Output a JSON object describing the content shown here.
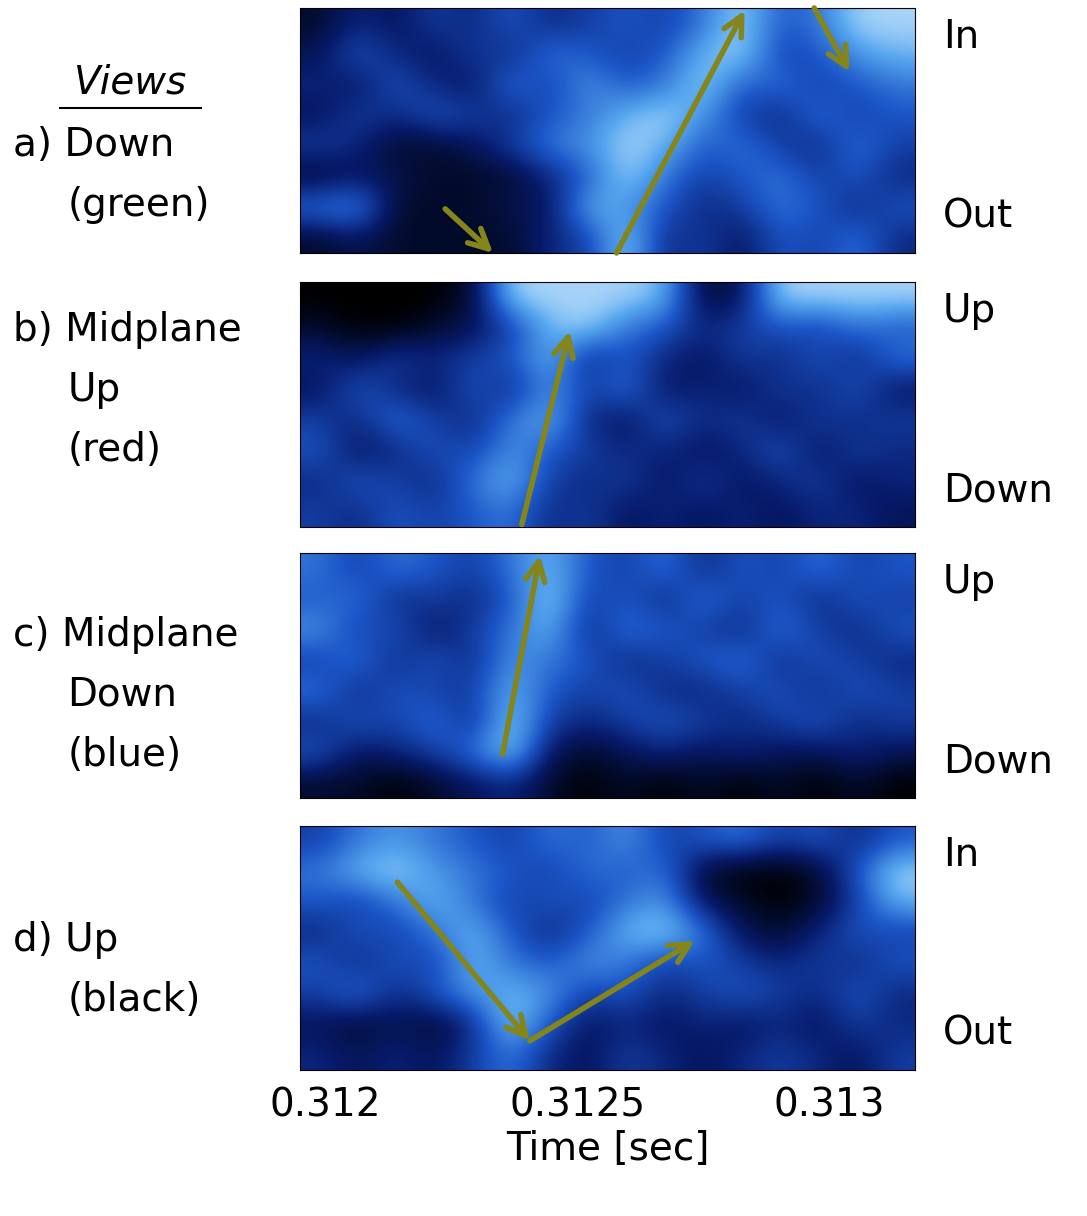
{
  "views_title": "Views",
  "chart_data": [
    {
      "type": "heatmap",
      "view_label": [
        "a) Down",
        "(green)"
      ],
      "y_top_label": "In",
      "y_bottom_label": "Out",
      "xlim": [
        0.31195,
        0.31317
      ],
      "ylim": [
        0,
        1
      ],
      "tick_labels": false,
      "color_range": [
        0,
        1
      ],
      "cells": [
        [
          0.1,
          0.3,
          0.2,
          0.4,
          0.3,
          0.5,
          0.3,
          0.4,
          0.5,
          0.4,
          0.6,
          0.9,
          0.5,
          0.6,
          0.9,
          0.9
        ],
        [
          0.2,
          0.5,
          0.3,
          0.2,
          0.4,
          0.3,
          0.6,
          0.5,
          0.4,
          0.5,
          0.8,
          0.9,
          0.4,
          0.5,
          0.7,
          0.8
        ],
        [
          0.3,
          0.2,
          0.5,
          0.3,
          0.2,
          0.6,
          0.4,
          0.7,
          0.5,
          0.6,
          0.9,
          0.5,
          0.6,
          0.4,
          0.5,
          0.6
        ],
        [
          0.2,
          0.4,
          0.3,
          0.5,
          0.4,
          0.3,
          0.5,
          0.6,
          0.8,
          0.9,
          0.7,
          0.4,
          0.3,
          0.6,
          0.4,
          0.5
        ],
        [
          0.4,
          0.3,
          0.1,
          0.1,
          0.2,
          0.4,
          0.6,
          0.7,
          0.9,
          0.8,
          0.5,
          0.6,
          0.4,
          0.3,
          0.6,
          0.4
        ],
        [
          0.1,
          0.2,
          0.2,
          0.1,
          0.1,
          0.1,
          0.3,
          0.5,
          0.9,
          0.6,
          0.4,
          0.5,
          0.6,
          0.4,
          0.5,
          0.3
        ],
        [
          0.6,
          0.7,
          0.1,
          0.1,
          0.1,
          0.2,
          0.2,
          0.8,
          0.7,
          0.5,
          0.3,
          0.4,
          0.6,
          0.5,
          0.3,
          0.5
        ],
        [
          0.1,
          0.2,
          0.1,
          0.1,
          0.1,
          0.1,
          0.3,
          0.4,
          0.9,
          0.3,
          0.4,
          0.2,
          0.5,
          0.4,
          0.6,
          0.3
        ]
      ],
      "arrows": [
        {
          "from": [
            0.312238,
            0.18
          ],
          "to": [
            0.312333,
            0.0
          ]
        },
        {
          "from": [
            0.312578,
            0.0
          ],
          "to": [
            0.312832,
            0.99
          ]
        },
        {
          "from": [
            0.31297,
            1.0
          ],
          "to": [
            0.31304,
            0.74
          ]
        }
      ]
    },
    {
      "type": "heatmap",
      "view_label": [
        "b) Midplane",
        "Up",
        "(red)"
      ],
      "y_top_label": "Up",
      "y_bottom_label": "Down",
      "xlim": [
        0.31195,
        0.31317
      ],
      "ylim": [
        0,
        1
      ],
      "tick_labels": false,
      "color_range": [
        0,
        1
      ],
      "cells": [
        [
          0.0,
          0.0,
          0.0,
          0.0,
          0.1,
          0.9,
          0.9,
          0.9,
          0.9,
          0.8,
          0.1,
          0.2,
          0.9,
          0.9,
          0.9,
          0.9
        ],
        [
          0.1,
          0.0,
          0.0,
          0.1,
          0.2,
          0.4,
          0.8,
          0.9,
          0.6,
          0.5,
          0.3,
          0.4,
          0.5,
          0.4,
          0.6,
          0.5
        ],
        [
          0.3,
          0.2,
          0.4,
          0.3,
          0.4,
          0.5,
          0.8,
          0.3,
          0.5,
          0.3,
          0.2,
          0.4,
          0.3,
          0.5,
          0.3,
          0.6
        ],
        [
          0.2,
          0.5,
          0.3,
          0.2,
          0.5,
          0.3,
          0.7,
          0.4,
          0.6,
          0.2,
          0.3,
          0.2,
          0.4,
          0.3,
          0.5,
          0.2
        ],
        [
          0.4,
          0.3,
          0.6,
          0.4,
          0.3,
          0.6,
          0.8,
          0.3,
          0.2,
          0.5,
          0.3,
          0.4,
          0.2,
          0.4,
          0.3,
          0.4
        ],
        [
          0.5,
          0.2,
          0.3,
          0.5,
          0.4,
          0.7,
          0.5,
          0.4,
          0.3,
          0.3,
          0.2,
          0.3,
          0.5,
          0.2,
          0.4,
          0.3
        ],
        [
          0.3,
          0.5,
          0.4,
          0.3,
          0.6,
          0.8,
          0.4,
          0.3,
          0.4,
          0.2,
          0.4,
          0.2,
          0.3,
          0.4,
          0.2,
          0.3
        ],
        [
          0.4,
          0.3,
          0.5,
          0.4,
          0.5,
          0.6,
          0.3,
          0.4,
          0.2,
          0.3,
          0.2,
          0.3,
          0.2,
          0.3,
          0.3,
          0.2
        ]
      ],
      "arrows": [
        {
          "from": [
            0.31239,
            0.01
          ],
          "to": [
            0.312485,
            0.8
          ]
        }
      ]
    },
    {
      "type": "heatmap",
      "view_label": [
        "c) Midplane",
        "Down",
        "(blue)"
      ],
      "y_top_label": "Up",
      "y_bottom_label": "Down",
      "xlim": [
        0.31195,
        0.31317
      ],
      "ylim": [
        0,
        1
      ],
      "tick_labels": false,
      "color_range": [
        0,
        1
      ],
      "cells": [
        [
          0.6,
          0.4,
          0.6,
          0.5,
          0.4,
          0.6,
          0.8,
          0.5,
          0.4,
          0.6,
          0.3,
          0.5,
          0.4,
          0.6,
          0.4,
          0.5
        ],
        [
          0.5,
          0.6,
          0.3,
          0.4,
          0.3,
          0.5,
          0.9,
          0.4,
          0.5,
          0.3,
          0.6,
          0.4,
          0.5,
          0.3,
          0.5,
          0.4
        ],
        [
          0.7,
          0.4,
          0.5,
          0.2,
          0.4,
          0.6,
          0.8,
          0.3,
          0.6,
          0.5,
          0.4,
          0.3,
          0.6,
          0.4,
          0.3,
          0.5
        ],
        [
          0.4,
          0.6,
          0.3,
          0.5,
          0.3,
          0.7,
          0.6,
          0.5,
          0.3,
          0.4,
          0.5,
          0.6,
          0.3,
          0.5,
          0.4,
          0.3
        ],
        [
          0.6,
          0.3,
          0.5,
          0.4,
          0.4,
          0.8,
          0.5,
          0.4,
          0.5,
          0.3,
          0.3,
          0.4,
          0.5,
          0.3,
          0.5,
          0.4
        ],
        [
          0.3,
          0.5,
          0.4,
          0.6,
          0.3,
          0.9,
          0.4,
          0.3,
          0.4,
          0.5,
          0.4,
          0.3,
          0.4,
          0.5,
          0.3,
          0.4
        ],
        [
          0.5,
          0.2,
          0.3,
          0.4,
          0.6,
          0.9,
          0.2,
          0.1,
          0.2,
          0.3,
          0.2,
          0.3,
          0.2,
          0.2,
          0.3,
          0.2
        ],
        [
          0.1,
          0.1,
          0.0,
          0.1,
          0.2,
          0.3,
          0.1,
          0.0,
          0.1,
          0.0,
          0.1,
          0.0,
          0.1,
          0.0,
          0.1,
          0.0
        ]
      ],
      "arrows": [
        {
          "from": [
            0.312352,
            0.18
          ],
          "to": [
            0.312426,
            0.99
          ]
        }
      ]
    },
    {
      "type": "heatmap",
      "view_label": [
        "d) Up",
        "(black)"
      ],
      "y_top_label": "In",
      "y_bottom_label": "Out",
      "xlim": [
        0.31195,
        0.31317
      ],
      "ylim": [
        0,
        1
      ],
      "tick_labels": "x",
      "xticks": [
        0.312,
        0.3125,
        0.313
      ],
      "x_label": "Time [sec]",
      "color_range": [
        0,
        1
      ],
      "cells": [
        [
          0.4,
          0.6,
          0.7,
          0.6,
          0.5,
          0.4,
          0.6,
          0.5,
          0.7,
          0.4,
          0.5,
          0.6,
          0.4,
          0.5,
          0.3,
          0.5
        ],
        [
          0.6,
          0.8,
          0.9,
          0.7,
          0.6,
          0.5,
          0.4,
          0.6,
          0.5,
          0.6,
          0.1,
          0.0,
          0.0,
          0.1,
          0.5,
          0.9
        ],
        [
          0.5,
          0.4,
          0.6,
          0.8,
          0.6,
          0.4,
          0.5,
          0.4,
          0.6,
          0.7,
          0.2,
          0.1,
          0.0,
          0.1,
          0.4,
          0.8
        ],
        [
          0.3,
          0.5,
          0.4,
          0.6,
          0.8,
          0.5,
          0.3,
          0.5,
          0.8,
          0.9,
          0.6,
          0.2,
          0.1,
          0.3,
          0.5,
          0.4
        ],
        [
          0.5,
          0.3,
          0.5,
          0.4,
          0.8,
          0.6,
          0.5,
          0.7,
          0.6,
          0.4,
          0.5,
          0.4,
          0.3,
          0.4,
          0.3,
          0.5
        ],
        [
          0.4,
          0.6,
          0.3,
          0.5,
          0.7,
          0.8,
          0.7,
          0.4,
          0.5,
          0.3,
          0.4,
          0.5,
          0.4,
          0.3,
          0.5,
          0.3
        ],
        [
          0.2,
          0.1,
          0.2,
          0.1,
          0.3,
          0.9,
          0.5,
          0.2,
          0.3,
          0.2,
          0.3,
          0.2,
          0.3,
          0.2,
          0.4,
          0.3
        ],
        [
          0.3,
          0.2,
          0.3,
          0.2,
          0.4,
          0.6,
          0.3,
          0.2,
          0.4,
          0.3,
          0.2,
          0.3,
          0.4,
          0.3,
          0.2,
          0.4
        ]
      ],
      "arrows": [
        {
          "from": [
            0.312143,
            0.77
          ],
          "to": [
            0.312406,
            0.12
          ]
        },
        {
          "from": [
            0.312406,
            0.12
          ],
          "to": [
            0.312733,
            0.53
          ]
        }
      ]
    }
  ]
}
